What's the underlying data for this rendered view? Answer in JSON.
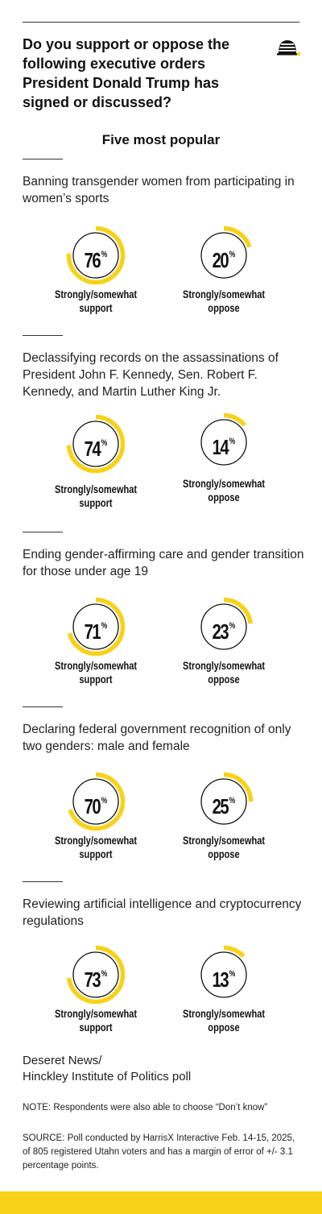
{
  "headline": "Do you support or oppose the following executive orders President Donald Trump has signed or discussed?",
  "subtitle": "Five most popular",
  "logo_icon": "beehive-icon",
  "colors": {
    "accent": "#f7d219",
    "ring": "#111111",
    "text": "#1a1a1a"
  },
  "chart_data": [
    {
      "type": "donut",
      "title": "Banning transgender women from participating in women’s sports",
      "categories": [
        "Strongly/somewhat support",
        "Strongly/somewhat oppose"
      ],
      "values": [
        76,
        20
      ],
      "unit": "%"
    },
    {
      "type": "donut",
      "title": "Declassifying records on the assassinations of President John F. Kennedy, Sen. Robert F. Kennedy, and Martin Luther King Jr.",
      "categories": [
        "Strongly/somewhat support",
        "Strongly/somewhat oppose"
      ],
      "values": [
        74,
        14
      ],
      "unit": "%"
    },
    {
      "type": "donut",
      "title": "Ending gender-affirming care and gender transition for those under age 19",
      "categories": [
        "Strongly/somewhat support",
        "Strongly/somewhat oppose"
      ],
      "values": [
        71,
        23
      ],
      "unit": "%"
    },
    {
      "type": "donut",
      "title": "Declaring federal government recognition of only two genders: male and female",
      "categories": [
        "Strongly/somewhat support",
        "Strongly/somewhat oppose"
      ],
      "values": [
        70,
        25
      ],
      "unit": "%"
    },
    {
      "type": "donut",
      "title": "Reviewing artificial intelligence and cryptocurrency regulations",
      "categories": [
        "Strongly/somewhat support",
        "Strongly/somewhat oppose"
      ],
      "values": [
        73,
        13
      ],
      "unit": "%"
    }
  ],
  "source_title": "Deseret News/\nHinckley Institute of Politics poll",
  "note": "NOTE: Respondents were also able to choose “Don’t know”",
  "source": "SOURCE: Poll conducted by HarrisX Interactive Feb. 14-15, 2025, of 805 registered Utahn voters and has a margin of error of +/- 3.1 percentage points."
}
